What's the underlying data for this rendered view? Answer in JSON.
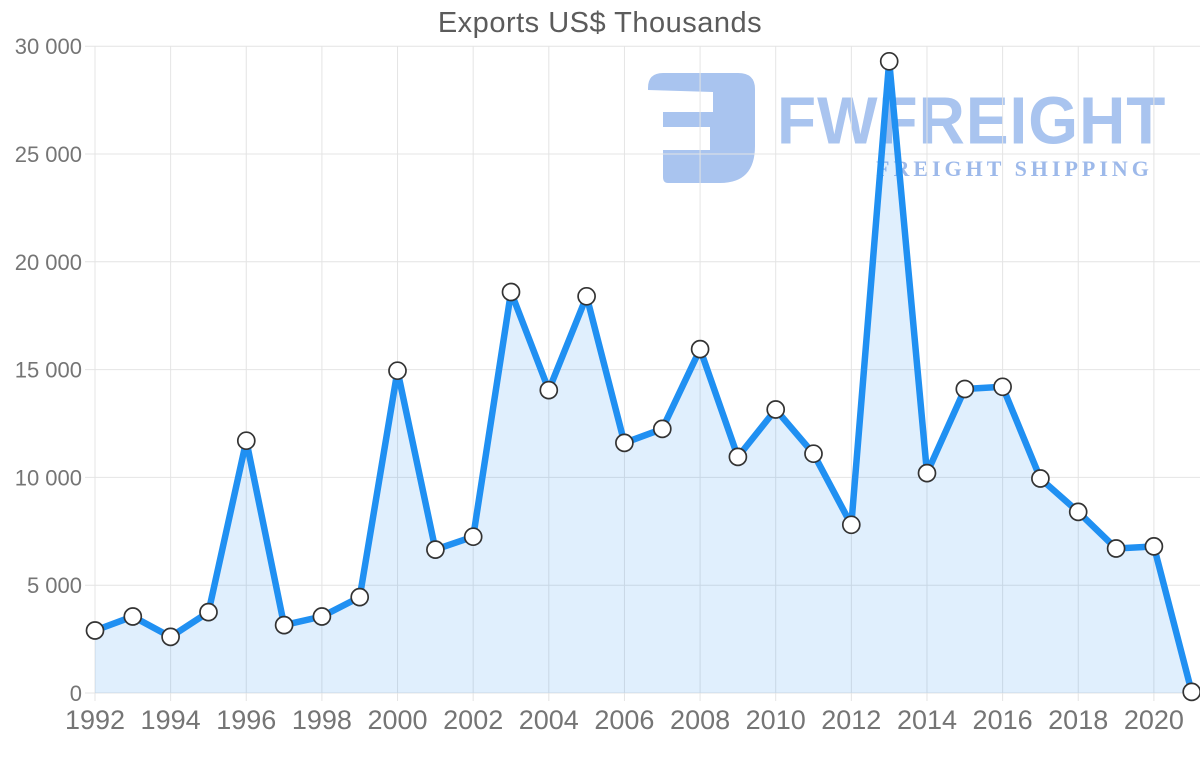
{
  "chart_data": {
    "type": "area",
    "title": "Exports US$ Thousands",
    "x": [
      1992,
      1993,
      1994,
      1995,
      1996,
      1997,
      1998,
      1999,
      2000,
      2001,
      2002,
      2003,
      2004,
      2005,
      2006,
      2007,
      2008,
      2009,
      2010,
      2011,
      2012,
      2013,
      2014,
      2015,
      2016,
      2017,
      2018,
      2019,
      2020,
      2021
    ],
    "values": [
      2900,
      3550,
      2600,
      3750,
      11700,
      3150,
      3550,
      4450,
      14950,
      6650,
      7250,
      18600,
      14050,
      18400,
      11600,
      12250,
      15950,
      10950,
      13150,
      11100,
      7800,
      29300,
      10200,
      14100,
      14200,
      9950,
      8400,
      6700,
      6800,
      50
    ],
    "series_name": "Exports US$ Thousands",
    "xlabel": "",
    "ylabel": "",
    "ylim": [
      0,
      30000
    ],
    "yticks": [
      0,
      5000,
      10000,
      15000,
      20000,
      25000,
      30000
    ],
    "ytick_labels": [
      "0",
      "5 000",
      "10 000",
      "15 000",
      "20 000",
      "25 000",
      "30 000"
    ],
    "xticks": [
      1992,
      1994,
      1996,
      1998,
      2000,
      2002,
      2004,
      2006,
      2008,
      2010,
      2012,
      2014,
      2016,
      2018,
      2020
    ],
    "xtick_labels": [
      "1992",
      "1994",
      "1996",
      "1998",
      "2000",
      "2002",
      "2004",
      "2006",
      "2008",
      "2010",
      "2012",
      "2014",
      "2016",
      "2018",
      "2020"
    ],
    "grid": true,
    "legend": "none",
    "marker": "circle"
  },
  "logo": {
    "brand": "FWFREIGHT",
    "tagline": "FREIGHT SHIPPING"
  },
  "colors": {
    "line": "#2090f2",
    "area_fill": "rgba(32,144,242,0.14)",
    "marker_fill": "#ffffff",
    "marker_stroke": "#333333",
    "grid": "#e4e4e4",
    "tick_label": "#757575",
    "title": "#5b5b5b",
    "logo_primary": "#a9c4ef",
    "logo_tagline": "#9db9ea"
  }
}
